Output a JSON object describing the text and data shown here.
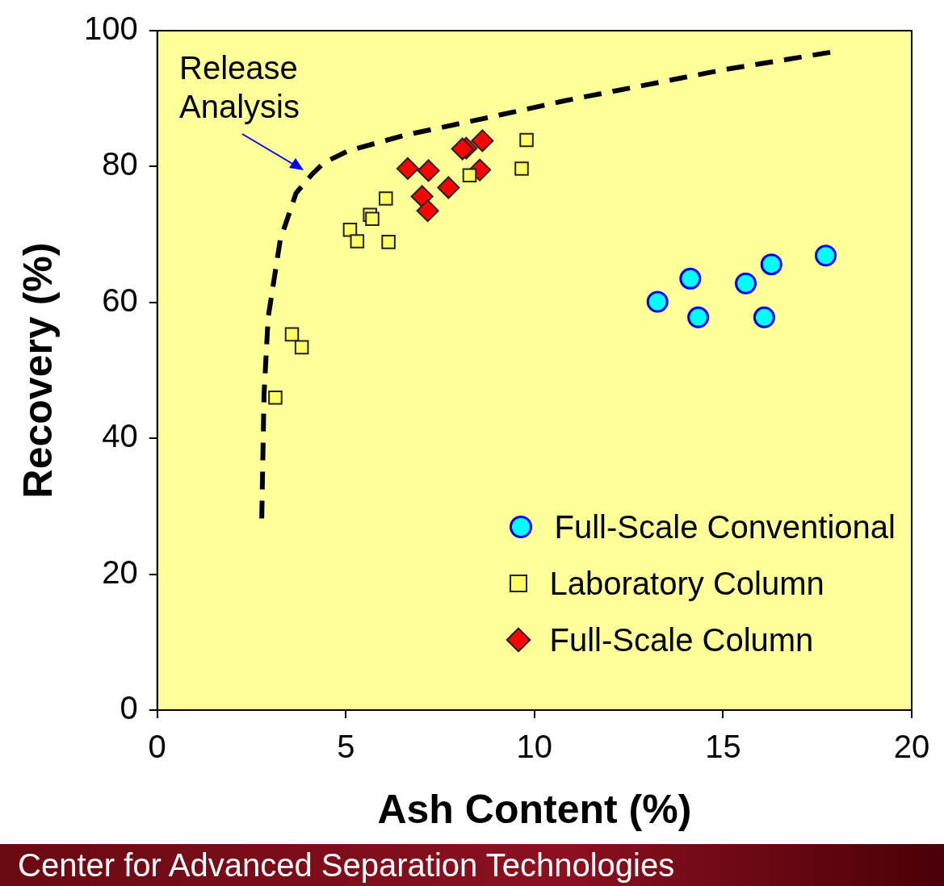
{
  "chart_data": {
    "type": "scatter",
    "xlabel": "Ash Content (%)",
    "ylabel": "Recovery (%)",
    "xlim": [
      0,
      20
    ],
    "xticks": [
      0,
      5,
      10,
      15,
      20
    ],
    "ylim": [
      0,
      100
    ],
    "yticks": [
      0,
      20,
      40,
      60,
      80,
      100
    ],
    "grid": false,
    "legend": "bottom right",
    "annotations": [
      "Release Analysis",
      "Center for Advanced Separation Technologies"
    ],
    "series": [
      {
        "type": "line",
        "line_style": "dashed",
        "marker": "none",
        "color": "#000000",
        "x": [
          2.77,
          2.83,
          2.94,
          3.26,
          3.68,
          4.11,
          4.43,
          5.06,
          6.55,
          8.68,
          10.81,
          12.94,
          15.06,
          17.94
        ],
        "values": [
          28.2,
          46.4,
          57.8,
          69.2,
          76.1,
          78.9,
          80.6,
          82.3,
          84.6,
          87.1,
          89.7,
          92.0,
          94.3,
          96.9
        ]
      },
      {
        "name": "Full-Scale Conventional",
        "marker": "circle",
        "color": "#00ffff",
        "x": [
          13.26,
          14.13,
          14.34,
          15.6,
          16.09,
          16.28,
          17.72
        ],
        "values": [
          60.1,
          63.5,
          57.8,
          62.8,
          57.8,
          65.6,
          66.9
        ]
      },
      {
        "name": "Laboratory Column",
        "marker": "square",
        "color": "#ffff66",
        "x": [
          9.79,
          9.66,
          8.28,
          6.06,
          5.64,
          5.7,
          5.11,
          5.3,
          6.13,
          3.57,
          3.83,
          3.13
        ],
        "values": [
          83.9,
          79.7,
          78.7,
          75.3,
          72.9,
          72.3,
          70.7,
          69.0,
          68.9,
          55.3,
          53.4,
          46.0
        ]
      },
      {
        "name": "Full-Scale Column",
        "marker": "diamond",
        "color": "#ff0000",
        "x": [
          8.62,
          8.19,
          8.09,
          6.64,
          7.19,
          8.55,
          7.72,
          7.02,
          7.17
        ],
        "values": [
          83.8,
          82.7,
          82.6,
          79.7,
          79.4,
          79.5,
          76.9,
          75.6,
          73.5
        ]
      }
    ]
  }
}
